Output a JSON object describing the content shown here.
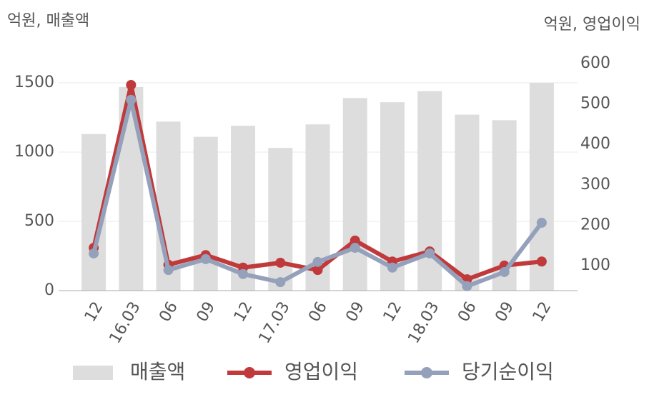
{
  "chart_data": {
    "type": "bar-line",
    "y_label": "억원, 매출액",
    "y2_label": "억원, 영업이익",
    "categories": [
      "12",
      "16.03",
      "06",
      "09",
      "12",
      "17.03",
      "06",
      "09",
      "12",
      "18.03",
      "06",
      "09",
      "12"
    ],
    "series": [
      {
        "name": "매출액",
        "type": "bar",
        "color": "#dddddd",
        "values": [
          1130,
          1470,
          1220,
          1110,
          1190,
          1030,
          1200,
          1390,
          1360,
          1440,
          1270,
          1230,
          1500
        ]
      },
      {
        "name": "영업이익",
        "type": "line",
        "axis": "y2",
        "color": "#c0393b",
        "values": [
          144,
          547,
          102,
          126,
          95,
          107,
          89,
          162,
          110,
          135,
          66,
          100,
          110
        ]
      },
      {
        "name": "당기순이익",
        "type": "line",
        "axis": "y2",
        "color": "#95a1bb",
        "values": [
          130,
          510,
          89,
          116,
          79,
          59,
          109,
          144,
          95,
          130,
          49,
          84,
          206
        ]
      }
    ],
    "ylim": [
      0,
      1639
    ],
    "yticks": [
      0,
      500,
      1000,
      1500
    ],
    "y2lim": [
      38,
      600
    ],
    "y2ticks": [
      100,
      200,
      300,
      400,
      500,
      600
    ],
    "grid": true,
    "legend": "bottom"
  }
}
